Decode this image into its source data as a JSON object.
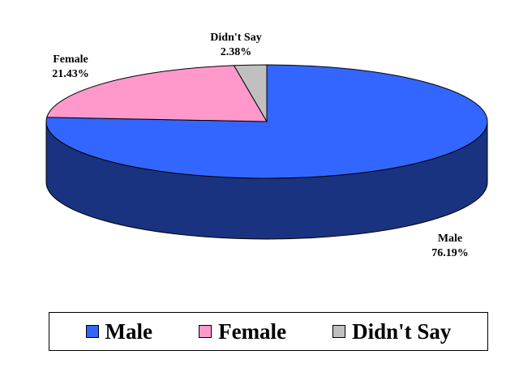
{
  "chart_data": {
    "type": "pie",
    "style": "3d",
    "title": "",
    "legend_placement": "bottom",
    "slices": [
      {
        "label": "Male",
        "value": 76.19,
        "value_label": "76.19%",
        "color": "#3366FF",
        "side_color": "#1A3380"
      },
      {
        "label": "Female",
        "value": 21.43,
        "value_label": "21.43%",
        "color": "#FF99CC",
        "side_color": "#A0507A"
      },
      {
        "label": "Didn't Say",
        "value": 2.38,
        "value_label": "2.38%",
        "color": "#C0C0C0",
        "side_color": "#808080"
      }
    ]
  },
  "legend": {
    "items": [
      {
        "label": "Male",
        "color": "#3366FF"
      },
      {
        "label": "Female",
        "color": "#FF99CC"
      },
      {
        "label": "Didn't Say",
        "color": "#C0C0C0"
      }
    ]
  }
}
